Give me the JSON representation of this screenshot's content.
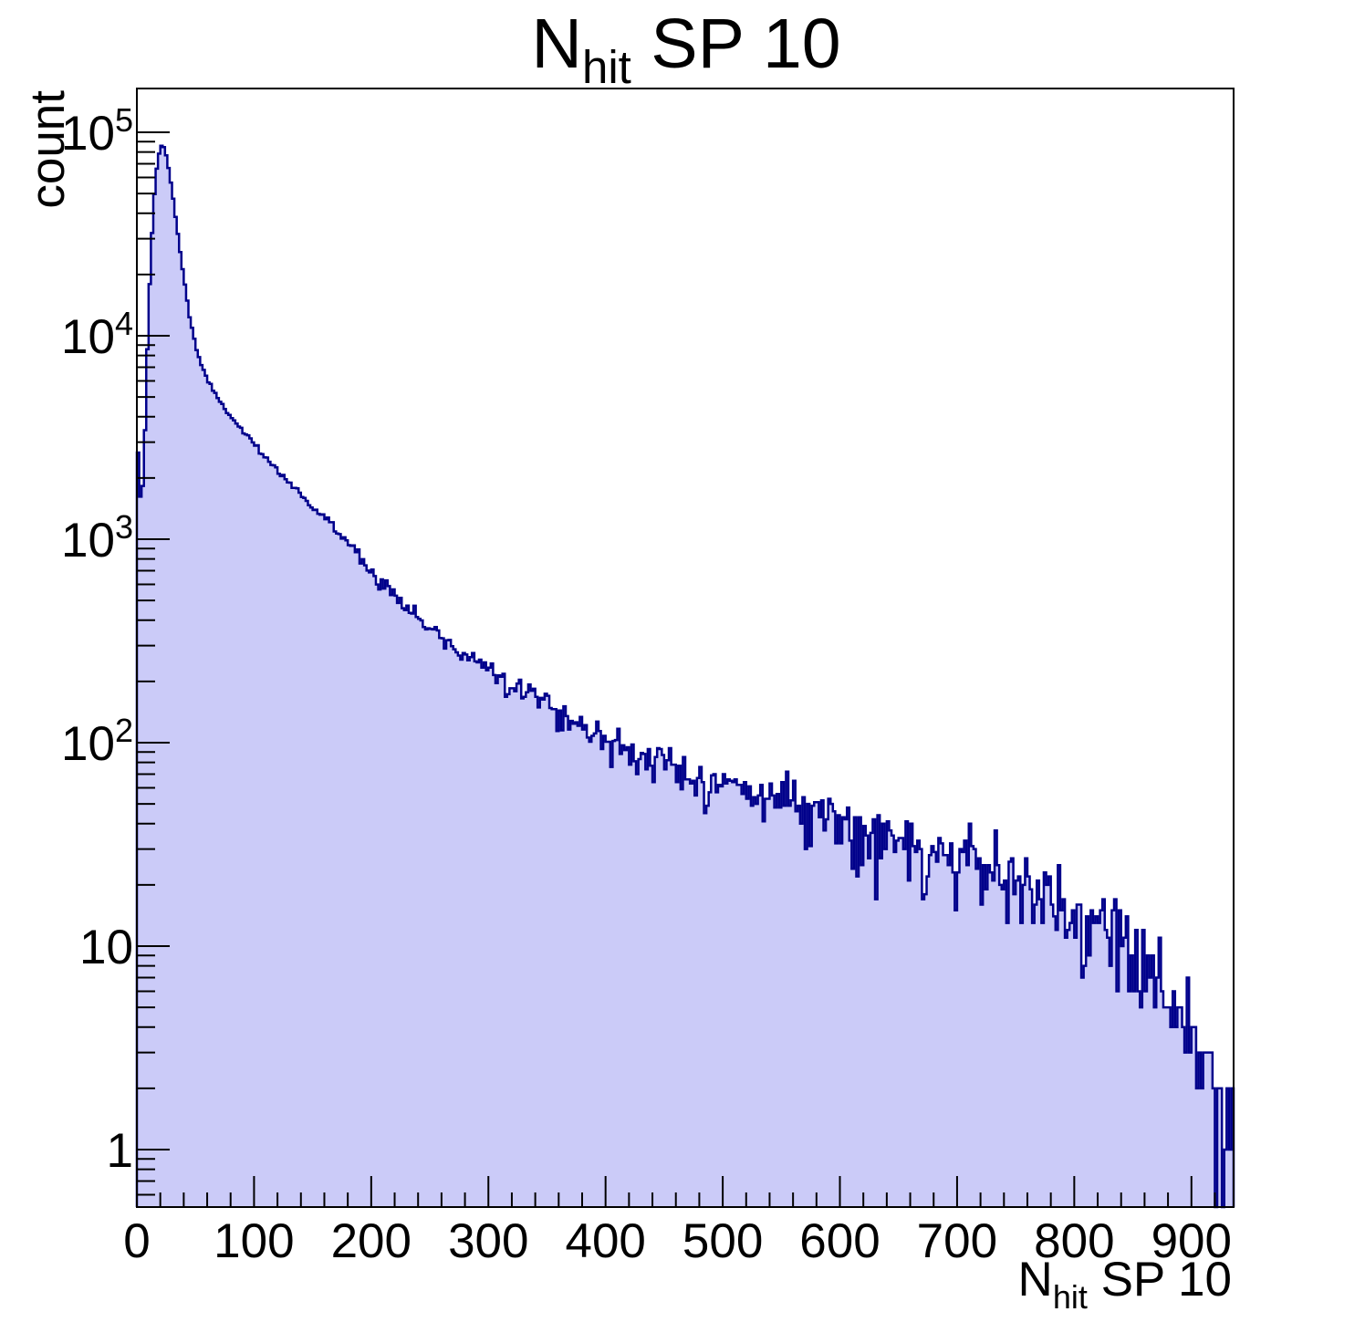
{
  "title": {
    "main": "N",
    "sub": "hit",
    "rest": " SP 10"
  },
  "axes": {
    "y_label": "count",
    "x_label": {
      "main": "N",
      "sub": "hit",
      "rest": " SP 10"
    },
    "x_tick_labels": [
      "0",
      "100",
      "200",
      "300",
      "400",
      "500",
      "600",
      "700",
      "800",
      "900"
    ],
    "y_tick_labels": [
      {
        "base": "1",
        "exp": ""
      },
      {
        "base": "10",
        "exp": ""
      },
      {
        "base": "10",
        "exp": "2"
      },
      {
        "base": "10",
        "exp": "3"
      },
      {
        "base": "10",
        "exp": "4"
      },
      {
        "base": "10",
        "exp": "5"
      }
    ]
  },
  "colors": {
    "fill": "#cbcbf8",
    "line": "#00008b",
    "frame": "#000000",
    "background": "#ffffff",
    "text": "#000000"
  },
  "chart_data": {
    "type": "bar",
    "subtype": "filled-step-histogram",
    "title": "N_hit SP 10",
    "xlabel": "N_hit SP 10",
    "ylabel": "count",
    "x_range": [
      0,
      936
    ],
    "y_scale": "log",
    "y_range_displayed": [
      0.52,
      164000
    ],
    "grid": false,
    "legend": false,
    "bin_width": 2,
    "n_bins": 468,
    "x_major_ticks": [
      0,
      100,
      200,
      300,
      400,
      500,
      600,
      700,
      800,
      900
    ],
    "x_minor_step": 20,
    "y_decade_ticks": [
      1,
      10,
      100,
      1000,
      10000,
      100000
    ],
    "peak": {
      "x": 21,
      "count": 85500
    },
    "first_bin_spike": {
      "x": 1,
      "count": 2700
    },
    "noise_model": "poisson",
    "seed": 1234,
    "envelope": [
      [
        1,
        2700
      ],
      [
        3,
        1600
      ],
      [
        5,
        1750
      ],
      [
        7,
        3400
      ],
      [
        9,
        8500
      ],
      [
        11,
        18000
      ],
      [
        13,
        32000
      ],
      [
        15,
        50000
      ],
      [
        17,
        66000
      ],
      [
        19,
        78500
      ],
      [
        21,
        85500
      ],
      [
        23,
        84500
      ],
      [
        25,
        77000
      ],
      [
        27,
        67000
      ],
      [
        29,
        56500
      ],
      [
        31,
        47000
      ],
      [
        33,
        38500
      ],
      [
        35,
        31500
      ],
      [
        37,
        26000
      ],
      [
        39,
        21500
      ],
      [
        41,
        17800
      ],
      [
        43,
        14800
      ],
      [
        45,
        12400
      ],
      [
        48,
        10200
      ],
      [
        51,
        8600
      ],
      [
        55,
        7200
      ],
      [
        60,
        6100
      ],
      [
        65,
        5400
      ],
      [
        70,
        4800
      ],
      [
        75,
        4400
      ],
      [
        80,
        4050
      ],
      [
        85,
        3700
      ],
      [
        90,
        3420
      ],
      [
        95,
        3170
      ],
      [
        100,
        2900
      ],
      [
        108,
        2560
      ],
      [
        116,
        2280
      ],
      [
        124,
        2060
      ],
      [
        132,
        1880
      ],
      [
        140,
        1660
      ],
      [
        150,
        1440
      ],
      [
        160,
        1270
      ],
      [
        169,
        1120
      ],
      [
        180,
        960
      ],
      [
        190,
        840
      ],
      [
        203,
        665
      ],
      [
        215,
        580
      ],
      [
        228,
        480
      ],
      [
        241,
        400
      ],
      [
        255,
        345
      ],
      [
        270,
        295
      ],
      [
        285,
        262
      ],
      [
        301,
        238
      ],
      [
        320,
        196
      ],
      [
        340,
        170
      ],
      [
        360,
        142
      ],
      [
        380,
        120
      ],
      [
        400,
        103
      ],
      [
        420,
        92
      ],
      [
        440,
        82
      ],
      [
        460,
        74
      ],
      [
        480,
        67
      ],
      [
        500,
        62
      ],
      [
        520,
        58
      ],
      [
        540,
        55
      ],
      [
        568,
        50
      ],
      [
        600,
        41
      ],
      [
        625,
        37
      ],
      [
        650,
        33
      ],
      [
        680,
        28
      ],
      [
        714,
        25
      ],
      [
        750,
        19
      ],
      [
        784,
        15
      ],
      [
        820,
        12
      ],
      [
        854,
        9
      ],
      [
        880,
        7
      ],
      [
        900,
        4.2
      ],
      [
        915,
        2.2
      ],
      [
        925,
        1.3
      ],
      [
        936,
        0.8
      ]
    ]
  }
}
